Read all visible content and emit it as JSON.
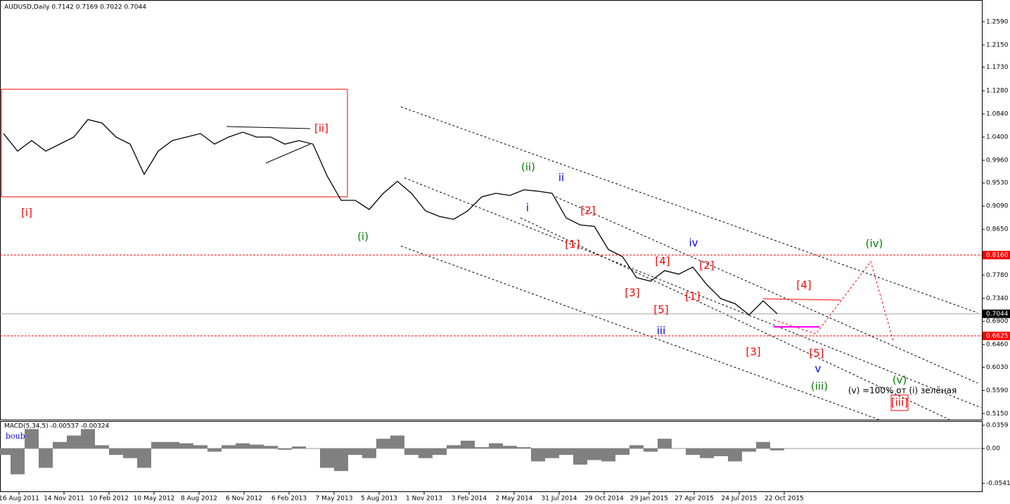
{
  "chart_data": {
    "type": "line",
    "title": "AUDUSD,Daily  0.7142 0.7169 0.7022 0.7044",
    "series": [
      {
        "name": "AUDUSD",
        "color": "#000000",
        "values": [
          1.0467,
          1.0134,
          1.0334,
          1.0134,
          1.0267,
          1.0401,
          1.0734,
          1.0668,
          1.0401,
          1.0267,
          0.9693,
          1.0134,
          1.0334,
          1.0401,
          1.0467,
          1.0267,
          1.0401,
          1.0494,
          1.0401,
          1.0401,
          1.0267,
          1.0334,
          1.0267,
          0.9666,
          0.9199,
          0.9199,
          0.9026,
          0.9333,
          0.956,
          0.9333,
          0.8999,
          0.8892,
          0.8839,
          0.8999,
          0.9266,
          0.9333,
          0.9293,
          0.9399,
          0.9373,
          0.9333,
          0.8865,
          0.8732,
          0.8705,
          0.8265,
          0.8131,
          0.7731,
          0.7664,
          0.7864,
          0.7797,
          0.7931,
          0.7597,
          0.733,
          0.7237,
          0.7023,
          0.729,
          0.7044
        ]
      }
    ],
    "x_labels": [
      "16 Aug 2011",
      "14 Nov 2011",
      "10 Feb 2012",
      "10 May 2012",
      "8 Aug 2012",
      "6 Nov 2012",
      "6 Feb 2013",
      "7 May 2013",
      "5 Aug 2013",
      "1 Nov 2013",
      "3 Feb 2014",
      "2 May 2014",
      "31 Jul 2014",
      "29 Oct 2014",
      "29 Jan 2015",
      "27 Apr 2015",
      "24 Jul 2015",
      "22 Oct 2015"
    ],
    "ylim": [
      0.5034,
      1.3004
    ],
    "yticks": [
      {
        "value": 1.259,
        "label": "1.2590"
      },
      {
        "value": 1.215,
        "label": "1.2150"
      },
      {
        "value": 1.173,
        "label": "1.1730"
      },
      {
        "value": 1.128,
        "label": "1.1280"
      },
      {
        "value": 1.084,
        "label": "1.0840"
      },
      {
        "value": 1.04,
        "label": "1.0400"
      },
      {
        "value": 0.996,
        "label": "0.9960"
      },
      {
        "value": 0.953,
        "label": "0.9530"
      },
      {
        "value": 0.909,
        "label": "0.9090"
      },
      {
        "value": 0.865,
        "label": "0.8650"
      },
      {
        "value": 0.778,
        "label": "0.7780"
      },
      {
        "value": 0.734,
        "label": "0.7340"
      },
      {
        "value": 0.69,
        "label": "0.6900"
      },
      {
        "value": 0.646,
        "label": "0.6460"
      },
      {
        "value": 0.603,
        "label": "0.6030"
      },
      {
        "value": 0.559,
        "label": "0.5590"
      },
      {
        "value": 0.515,
        "label": "0.5150"
      }
    ],
    "levels": [
      {
        "value": 0.816,
        "label": "0.8160",
        "color": "#ff0000"
      },
      {
        "value": 0.7044,
        "color": "#000000"
      },
      {
        "value": 0.6625,
        "color": "#ff0000"
      }
    ],
    "annotations": [
      {
        "text": "[i]",
        "color": "#ff0000"
      },
      {
        "text": "[ii]",
        "color": "#ff0000"
      },
      {
        "text": "(i)",
        "color": "#008000"
      },
      {
        "text": "(ii)",
        "color": "#008000"
      },
      {
        "text": "ii",
        "color": "#0000ff"
      },
      {
        "text": "i",
        "color": "#0000ff"
      },
      {
        "text": "[2]",
        "color": "#ff0000"
      },
      {
        "text": "[1]",
        "color": "#ff0000"
      },
      {
        "text": "[4]",
        "color": "#ff0000"
      },
      {
        "text": "iv",
        "color": "#0000ff"
      },
      {
        "text": "[2]",
        "color": "#ff0000"
      },
      {
        "text": "[3]",
        "color": "#ff0000"
      },
      {
        "text": "[5]",
        "color": "#ff0000"
      },
      {
        "text": "[1]",
        "color": "#ff0000"
      },
      {
        "text": "iii",
        "color": "#0000ff"
      },
      {
        "text": "[3]",
        "color": "#ff0000"
      },
      {
        "text": "[4]",
        "color": "#ff0000"
      },
      {
        "text": "[5]",
        "color": "#ff0000"
      },
      {
        "text": "v",
        "color": "#0000ff"
      },
      {
        "text": "(iii)",
        "color": "#008000"
      },
      {
        "text": "(iv)",
        "color": "#008000"
      },
      {
        "text": "(v)",
        "color": "#008000"
      },
      {
        "text": "[iii]",
        "color": "#ff0000"
      },
      {
        "text": "(v) =100% от (i) зелёная",
        "color": "#000000"
      }
    ],
    "macd": {
      "title": "MACD(5,34,5) -0.00537 -0.00324",
      "subtitle": "boubi",
      "color": "#808080",
      "values": [
        -0.01,
        -0.04,
        0.03,
        -0.03,
        0.01,
        0.02,
        0.03,
        0.005,
        -0.01,
        -0.015,
        -0.03,
        0.01,
        0.01,
        0.008,
        0.005,
        -0.005,
        0.005,
        0.008,
        0.006,
        0.004,
        -0.002,
        0.003,
        0.0,
        -0.03,
        -0.035,
        -0.01,
        -0.015,
        0.015,
        0.02,
        -0.01,
        -0.015,
        -0.01,
        0.005,
        0.012,
        0.002,
        0.008,
        0.004,
        0.002,
        -0.02,
        -0.015,
        -0.01,
        -0.025,
        -0.018,
        -0.02,
        -0.01,
        0.005,
        -0.005,
        0.015,
        0.0,
        -0.01,
        -0.015,
        -0.012,
        -0.02,
        -0.005,
        0.01,
        -0.003
      ],
      "ylim": [
        -0.0675,
        0.0424
      ],
      "yticks": [
        0.0359,
        {
          "value": 0,
          "label": "0.00"
        },
        -0.0541
      ]
    }
  }
}
